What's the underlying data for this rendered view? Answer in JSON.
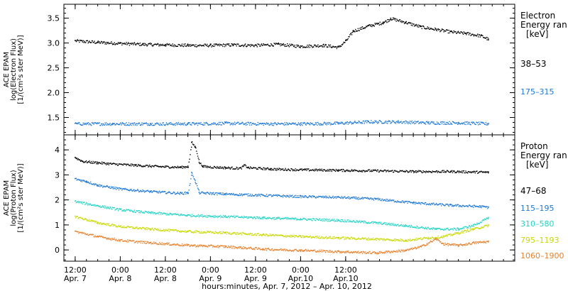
{
  "chart_data": [
    {
      "type": "scatter",
      "panel": "electron",
      "ylabel": [
        "ACE EPAM",
        "log(Electron Flux)",
        "[1/(cm²s ster MeV)]"
      ],
      "legend_title": [
        "Electron",
        "Energy ran",
        "[keV]"
      ],
      "ylim": [
        1.15,
        3.78
      ],
      "yticks": [
        1.5,
        2.0,
        2.5,
        3.0,
        3.5
      ],
      "ytick_labels": [
        "1.5",
        "2.0",
        "2.5",
        "3.0",
        "3.5"
      ],
      "series": [
        {
          "name": "38–53",
          "color": "#000000",
          "points": [
            [
              0,
              3.05
            ],
            [
              6,
              3.02
            ],
            [
              12,
              3.0
            ],
            [
              18,
              2.98
            ],
            [
              24,
              2.97
            ],
            [
              30,
              2.96
            ],
            [
              36,
              2.96
            ],
            [
              42,
              2.97
            ],
            [
              48,
              2.96
            ],
            [
              54,
              2.98
            ],
            [
              60,
              2.94
            ],
            [
              66,
              2.96
            ],
            [
              70,
              2.92
            ],
            [
              72,
              3.05
            ],
            [
              74,
              3.25
            ],
            [
              78,
              3.35
            ],
            [
              82,
              3.42
            ],
            [
              84,
              3.5
            ],
            [
              88,
              3.42
            ],
            [
              92,
              3.33
            ],
            [
              96,
              3.28
            ],
            [
              100,
              3.23
            ],
            [
              104,
              3.2
            ],
            [
              108,
              3.15
            ],
            [
              110,
              3.08
            ]
          ]
        },
        {
          "name": "175–315",
          "color": "#1e78d6",
          "points": [
            [
              0,
              1.38
            ],
            [
              10,
              1.38
            ],
            [
              20,
              1.38
            ],
            [
              30,
              1.38
            ],
            [
              40,
              1.39
            ],
            [
              50,
              1.38
            ],
            [
              60,
              1.38
            ],
            [
              70,
              1.39
            ],
            [
              78,
              1.42
            ],
            [
              86,
              1.42
            ],
            [
              94,
              1.4
            ],
            [
              102,
              1.4
            ],
            [
              110,
              1.38
            ]
          ]
        }
      ]
    },
    {
      "type": "scatter",
      "panel": "proton",
      "ylabel": [
        "ACE EPAM",
        "log(Proton Flux)",
        "[1/(cm²s ster MeV)]"
      ],
      "legend_title": [
        "Proton",
        "Energy ran",
        "[keV]"
      ],
      "ylim": [
        -0.45,
        4.6
      ],
      "yticks": [
        0,
        1,
        2,
        3,
        4
      ],
      "ytick_labels": [
        "0",
        "1",
        "2",
        "3",
        "4"
      ],
      "series": [
        {
          "name": "47–68",
          "color": "#000000",
          "points": [
            [
              0,
              3.7
            ],
            [
              2,
              3.55
            ],
            [
              6,
              3.5
            ],
            [
              10,
              3.45
            ],
            [
              16,
              3.4
            ],
            [
              22,
              3.35
            ],
            [
              28,
              3.32
            ],
            [
              30,
              3.35
            ],
            [
              31,
              4.3
            ],
            [
              32,
              4.1
            ],
            [
              33,
              3.5
            ],
            [
              34,
              3.35
            ],
            [
              40,
              3.3
            ],
            [
              44,
              3.28
            ],
            [
              45,
              3.4
            ],
            [
              46,
              3.3
            ],
            [
              52,
              3.25
            ],
            [
              60,
              3.22
            ],
            [
              70,
              3.2
            ],
            [
              80,
              3.18
            ],
            [
              90,
              3.15
            ],
            [
              100,
              3.15
            ],
            [
              110,
              3.12
            ]
          ]
        },
        {
          "name": "115–195",
          "color": "#1e78d6",
          "points": [
            [
              0,
              2.85
            ],
            [
              3,
              2.75
            ],
            [
              6,
              2.6
            ],
            [
              12,
              2.45
            ],
            [
              20,
              2.35
            ],
            [
              28,
              2.28
            ],
            [
              30,
              2.3
            ],
            [
              31,
              3.1
            ],
            [
              32,
              2.7
            ],
            [
              33,
              2.3
            ],
            [
              40,
              2.25
            ],
            [
              50,
              2.2
            ],
            [
              60,
              2.15
            ],
            [
              70,
              2.12
            ],
            [
              80,
              2.05
            ],
            [
              90,
              1.9
            ],
            [
              100,
              1.8
            ],
            [
              108,
              1.75
            ],
            [
              110,
              1.72
            ]
          ]
        },
        {
          "name": "310–580",
          "color": "#22d3c5",
          "points": [
            [
              0,
              1.95
            ],
            [
              6,
              1.78
            ],
            [
              12,
              1.62
            ],
            [
              20,
              1.5
            ],
            [
              30,
              1.4
            ],
            [
              40,
              1.35
            ],
            [
              50,
              1.3
            ],
            [
              60,
              1.25
            ],
            [
              70,
              1.2
            ],
            [
              80,
              1.1
            ],
            [
              88,
              0.98
            ],
            [
              96,
              0.85
            ],
            [
              102,
              0.85
            ],
            [
              106,
              1.0
            ],
            [
              110,
              1.3
            ]
          ]
        },
        {
          "name": "795–1193",
          "color": "#c8d800",
          "points": [
            [
              0,
              1.35
            ],
            [
              6,
              1.1
            ],
            [
              12,
              0.95
            ],
            [
              20,
              0.85
            ],
            [
              30,
              0.75
            ],
            [
              40,
              0.7
            ],
            [
              50,
              0.62
            ],
            [
              60,
              0.55
            ],
            [
              70,
              0.5
            ],
            [
              80,
              0.45
            ],
            [
              88,
              0.4
            ],
            [
              94,
              0.5
            ],
            [
              98,
              0.55
            ],
            [
              102,
              0.7
            ],
            [
              106,
              0.85
            ],
            [
              110,
              1.0
            ]
          ]
        },
        {
          "name": "1060–1900",
          "color": "#e8802a",
          "points": [
            [
              0,
              0.75
            ],
            [
              6,
              0.55
            ],
            [
              12,
              0.4
            ],
            [
              20,
              0.3
            ],
            [
              30,
              0.2
            ],
            [
              40,
              0.15
            ],
            [
              50,
              0.05
            ],
            [
              60,
              0.0
            ],
            [
              70,
              -0.05
            ],
            [
              80,
              -0.1
            ],
            [
              88,
              0.0
            ],
            [
              92,
              0.15
            ],
            [
              96,
              0.45
            ],
            [
              98,
              0.25
            ],
            [
              102,
              0.2
            ],
            [
              106,
              0.3
            ],
            [
              110,
              0.35
            ]
          ]
        }
      ]
    }
  ],
  "x_axis": {
    "xlim": [
      -3,
      117
    ],
    "ticks": [
      {
        "x": 0,
        "l1": "12:00",
        "l2": "Apr. 7"
      },
      {
        "x": 12,
        "l1": "0:00",
        "l2": "Apr. 8"
      },
      {
        "x": 24,
        "l1": "12:00",
        "l2": "Apr. 8"
      },
      {
        "x": 36,
        "l1": "0:00",
        "l2": "Apr. 9"
      },
      {
        "x": 48,
        "l1": "12:00",
        "l2": "Apr. 9"
      },
      {
        "x": 60,
        "l1": "0:00",
        "l2": "Apr.10"
      },
      {
        "x": 72,
        "l1": "12:00",
        "l2": "Apr.10"
      }
    ],
    "title": "hours:minutes, Apr.  7, 2012 – Apr. 10, 2012"
  }
}
